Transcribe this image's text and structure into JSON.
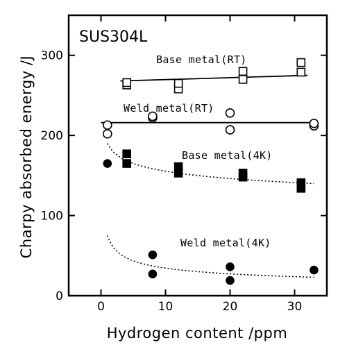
{
  "chart_data": {
    "type": "scatter",
    "title": "SUS304L",
    "xlabel": "Hydrogen content /ppm",
    "ylabel": "Charpy absorbed energy /J",
    "xlim": [
      -5,
      35
    ],
    "ylim": [
      0,
      350
    ],
    "x_ticks": [
      0,
      10,
      20,
      30
    ],
    "y_ticks": [
      0,
      100,
      200,
      300
    ],
    "grid": false,
    "legend": "inline labels",
    "series": [
      {
        "name": "Base metal(RT)",
        "marker": "open-square",
        "points": [
          [
            4,
            263
          ],
          [
            4,
            266
          ],
          [
            12,
            258
          ],
          [
            12,
            265
          ],
          [
            22,
            270
          ],
          [
            22,
            280
          ],
          [
            31,
            279
          ],
          [
            31,
            291
          ]
        ],
        "fit": {
          "style": "solid",
          "x": [
            3,
            32
          ],
          "y": [
            268,
            275
          ]
        }
      },
      {
        "name": "Weld metal(RT)",
        "marker": "open-circle",
        "points": [
          [
            1,
            202
          ],
          [
            1,
            213
          ],
          [
            8,
            222
          ],
          [
            8,
            224
          ],
          [
            20,
            207
          ],
          [
            20,
            228
          ],
          [
            33,
            212
          ],
          [
            33,
            215
          ]
        ],
        "fit": {
          "style": "solid",
          "x": [
            0,
            33
          ],
          "y": [
            216,
            216
          ]
        }
      },
      {
        "name": "Base metal(4K)",
        "marker": "filled-square",
        "points": [
          [
            4,
            165
          ],
          [
            4,
            177
          ],
          [
            12,
            153
          ],
          [
            12,
            161
          ],
          [
            22,
            148
          ],
          [
            22,
            153
          ],
          [
            31,
            134
          ],
          [
            31,
            141
          ]
        ],
        "fit": {
          "style": "dotted",
          "x": [
            1,
            33
          ],
          "y": [
            190,
            140
          ]
        }
      },
      {
        "name": "Weld metal(4K)",
        "marker": "filled-circle",
        "points": [
          [
            1,
            165
          ],
          [
            8,
            27
          ],
          [
            8,
            51
          ],
          [
            20,
            19
          ],
          [
            20,
            36
          ],
          [
            33,
            32
          ]
        ],
        "fit": {
          "style": "dotted",
          "x": [
            1,
            33
          ],
          "y": [
            75,
            23
          ]
        }
      }
    ]
  }
}
